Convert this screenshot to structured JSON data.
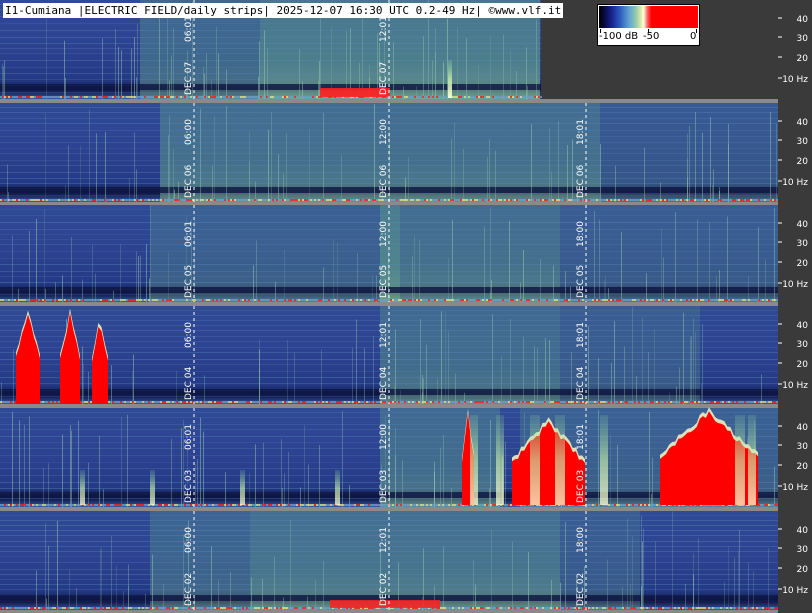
{
  "header": {
    "title": "I1-Cumiana |ELECTRIC FIELD/daily strips| 2025-12-07 16:30 UTC 0.2-49 Hz| ©www.vlf.it"
  },
  "legend": {
    "min_label": "-100 dB",
    "mid_label": "-50",
    "max_label": "0"
  },
  "colors": {
    "background": "#3a3a3a",
    "spectrogram_base": "#2a3c8c",
    "band_green": "#6ab48a",
    "burst_red": "#ff0000",
    "separator": "#8a8a8a",
    "axis_panel": "#3a3a3a",
    "dashed_line": "#ffffff"
  },
  "freq_labels": [
    "40",
    "30",
    "20",
    "10 Hz"
  ],
  "strips": [
    {
      "date": "DEC 07",
      "markers": [
        {
          "day": "DEC 07",
          "time": "06:01"
        },
        {
          "day": "DEC 07",
          "time": "12:01"
        }
      ],
      "partial": true
    },
    {
      "date": "DEC 06",
      "markers": [
        {
          "day": "DEC 06",
          "time": "06:00"
        },
        {
          "day": "DEC 06",
          "time": "12:00"
        },
        {
          "day": "DEC 06",
          "time": "18:01"
        }
      ]
    },
    {
      "date": "DEC 05",
      "markers": [
        {
          "day": "DEC 05",
          "time": "06:01"
        },
        {
          "day": "DEC 05",
          "time": "12:00"
        },
        {
          "day": "DEC 05",
          "time": "18:00"
        }
      ]
    },
    {
      "date": "DEC 04",
      "markers": [
        {
          "day": "DEC 04",
          "time": "06:00"
        },
        {
          "day": "DEC 04",
          "time": "12:01"
        },
        {
          "day": "DEC 04",
          "time": "18:01"
        }
      ]
    },
    {
      "date": "DEC 03",
      "markers": [
        {
          "day": "DEC 03",
          "time": "06:01"
        },
        {
          "day": "DEC 03",
          "time": "12:00"
        },
        {
          "day": "DEC 03",
          "time": "18:01"
        }
      ]
    },
    {
      "date": "DEC 02",
      "markers": [
        {
          "day": "DEC 02",
          "time": "06:00"
        },
        {
          "day": "DEC 02",
          "time": "12:01"
        },
        {
          "day": "DEC 02",
          "time": "18:00"
        }
      ]
    }
  ]
}
